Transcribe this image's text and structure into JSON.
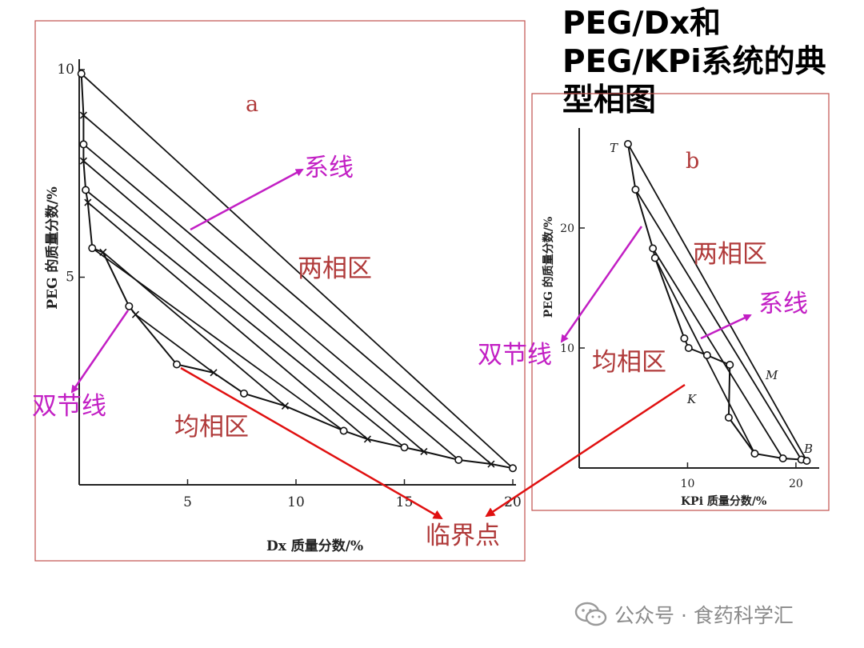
{
  "slide": {
    "title_lines": [
      "PEG/Dx和",
      "PEG/KPi系统的典",
      "型相图"
    ],
    "watermark": "公众号 · 食药科学汇",
    "watermark_icon": "wechat-icon"
  },
  "chart_data": [
    {
      "id": "a",
      "type": "line",
      "panel_label": "a",
      "xlabel": "Dx 质量分数/%",
      "ylabel": "PEG 的质量分数/%",
      "xlim": [
        0,
        20
      ],
      "ylim": [
        0,
        10
      ],
      "x_ticks": [
        "5",
        "10",
        "15",
        "20"
      ],
      "y_ticks": [
        "5",
        "10"
      ],
      "binodal": {
        "points": [
          [
            0.1,
            9.9
          ],
          [
            0.2,
            8.9
          ],
          [
            0.2,
            8.2
          ],
          [
            0.2,
            7.8
          ],
          [
            0.3,
            7.1
          ],
          [
            0.4,
            6.8
          ],
          [
            0.6,
            5.7
          ],
          [
            1.1,
            5.6
          ],
          [
            2.3,
            4.3
          ],
          [
            2.6,
            4.1
          ],
          [
            4.5,
            2.9
          ],
          [
            6.2,
            2.7
          ],
          [
            7.6,
            2.2
          ],
          [
            9.5,
            1.9
          ],
          [
            12.2,
            1.3
          ],
          [
            13.3,
            1.1
          ],
          [
            15.0,
            0.9
          ],
          [
            15.9,
            0.8
          ],
          [
            17.5,
            0.6
          ],
          [
            19.0,
            0.5
          ],
          [
            20.0,
            0.4
          ]
        ]
      },
      "tie_lines": [
        [
          [
            0.1,
            9.9
          ],
          [
            20.0,
            0.4
          ]
        ],
        [
          [
            0.2,
            8.9
          ],
          [
            19.0,
            0.5
          ]
        ],
        [
          [
            0.2,
            8.2
          ],
          [
            17.5,
            0.6
          ]
        ],
        [
          [
            0.2,
            7.8
          ],
          [
            15.9,
            0.8
          ]
        ],
        [
          [
            0.3,
            7.1
          ],
          [
            15.0,
            0.9
          ]
        ],
        [
          [
            0.4,
            6.8
          ],
          [
            13.3,
            1.1
          ]
        ],
        [
          [
            0.6,
            5.7
          ],
          [
            12.2,
            1.3
          ]
        ],
        [
          [
            1.1,
            5.6
          ],
          [
            9.5,
            1.9
          ]
        ],
        [
          [
            2.6,
            4.1
          ],
          [
            6.2,
            2.7
          ]
        ]
      ],
      "annotations": [
        {
          "text": "系线",
          "color": "#c21fc4"
        },
        {
          "text": "两相区",
          "color": "#b03a3a"
        },
        {
          "text": "双节线",
          "color": "#c21fc4"
        },
        {
          "text": "均相区",
          "color": "#b03a3a"
        },
        {
          "text": "临界点",
          "color": "#b03a3a"
        }
      ]
    },
    {
      "id": "b",
      "type": "line",
      "panel_label": "b",
      "xlabel": "KPi 质量分数/%",
      "ylabel": "PEG 的质量分数/%",
      "xlim": [
        0,
        22
      ],
      "ylim": [
        0,
        30
      ],
      "x_ticks": [
        "10",
        "20"
      ],
      "y_ticks": [
        "10",
        "20"
      ],
      "binodal": {
        "points": [
          [
            4.5,
            27.0
          ],
          [
            5.2,
            23.2
          ],
          [
            6.8,
            18.3
          ],
          [
            7.0,
            17.5
          ],
          [
            9.7,
            10.8
          ],
          [
            10.1,
            10.0
          ],
          [
            11.8,
            9.4
          ],
          [
            13.9,
            8.6
          ],
          [
            13.8,
            4.2
          ],
          [
            16.2,
            1.2
          ],
          [
            18.8,
            0.8
          ],
          [
            20.5,
            0.7
          ],
          [
            21.0,
            0.6
          ]
        ]
      },
      "tie_lines": [
        [
          [
            4.5,
            27.0
          ],
          [
            21.0,
            0.6
          ]
        ],
        [
          [
            5.2,
            23.2
          ],
          [
            20.5,
            0.7
          ]
        ],
        [
          [
            6.8,
            18.3
          ],
          [
            18.8,
            0.8
          ]
        ],
        [
          [
            7.0,
            17.5
          ],
          [
            16.2,
            1.2
          ]
        ]
      ],
      "point_labels": [
        "T",
        "M",
        "K",
        "B"
      ],
      "annotations": [
        {
          "text": "两相区",
          "color": "#b03a3a"
        },
        {
          "text": "系线",
          "color": "#c21fc4"
        },
        {
          "text": "双节线",
          "color": "#c21fc4"
        },
        {
          "text": "均相区",
          "color": "#b03a3a"
        }
      ]
    }
  ]
}
